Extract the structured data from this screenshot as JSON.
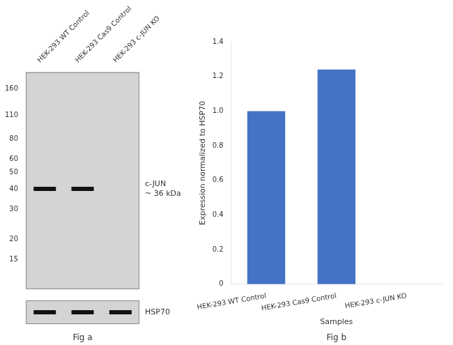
{
  "chart_data": [
    {
      "type": "blot",
      "categories": [
        "HEK-293 WT Control",
        "HEK-293 Cas9 Control",
        "HEK-293 c-JUN KO"
      ],
      "series": [
        {
          "name": "c-JUN\n~ 36 kDa",
          "color": "#111111",
          "values": [
            40,
            40,
            null
          ]
        }
      ],
      "loading_control": {
        "name": "HSP70",
        "color": "#111111",
        "lanes": [
          true,
          true,
          true
        ]
      },
      "log": "y",
      "ylim": [
        10,
        200
      ],
      "yticks": [
        160,
        110,
        80,
        60,
        50,
        40,
        30,
        20,
        15
      ],
      "grid": false,
      "annotations": [
        {
          "text": "Fig a"
        }
      ]
    },
    {
      "type": "bar",
      "categories": [
        "HEK-293 WT Control",
        "HEK-293 Cas9 Control",
        "HEK-293 c-JUN KO"
      ],
      "values": [
        1.0,
        1.24,
        0.0
      ],
      "color": "#4472c4",
      "xlabel": "Samples",
      "ylabel": "Expression normalized to HSP70",
      "ylim": [
        0,
        1.4
      ],
      "yticks": [
        0,
        0.2,
        0.4,
        0.6,
        0.8,
        {
          "value": 1.0,
          "label": "1.0"
        },
        1.2,
        1.4
      ],
      "grid": false,
      "annotations": [
        {
          "text": "Fig b"
        }
      ]
    }
  ]
}
